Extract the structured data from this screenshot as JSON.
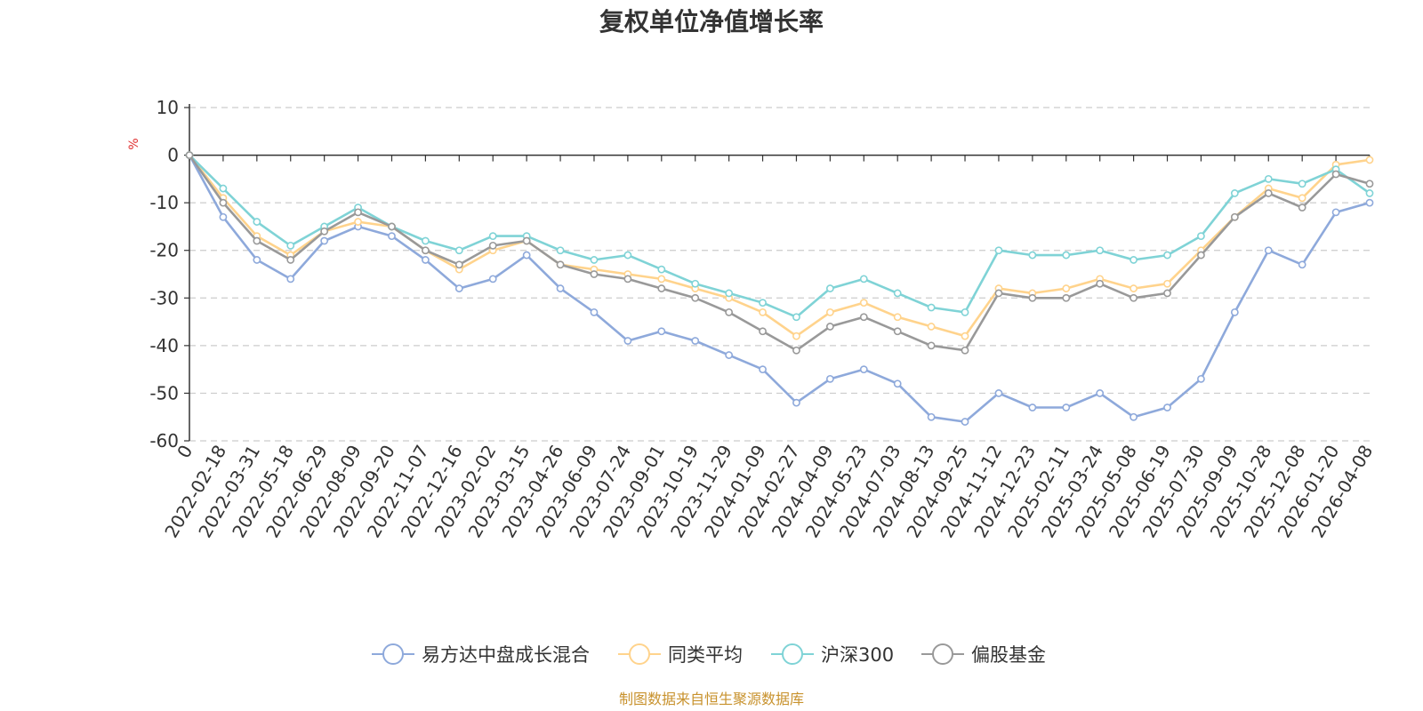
{
  "chart_data": {
    "type": "line",
    "title": "复权单位净值增长率",
    "ylabel": "%",
    "ylim": [
      -60,
      10
    ],
    "yticks": [
      10,
      0,
      -10,
      -20,
      -30,
      -40,
      -50,
      -60
    ],
    "x_tick_labels": [
      "0",
      "2022-02-18",
      "2022-03-31",
      "2022-05-18",
      "2022-06-29",
      "2022-08-09",
      "2022-09-20",
      "2022-11-07",
      "2022-12-16",
      "2023-02-02",
      "2023-03-15",
      "2023-04-26",
      "2023-06-09",
      "2023-07-24",
      "2023-09-01",
      "2023-10-19",
      "2023-11-29",
      "2024-01-09",
      "2024-02-27",
      "2024-04-09",
      "2024-05-23",
      "2024-07-03",
      "2024-08-13",
      "2024-09-25",
      "2024-11-12",
      "2024-12-23",
      "2025-02-11",
      "2025-03-24",
      "2025-05-08",
      "2025-06-19",
      "2025-07-30",
      "2025-09-09",
      "2025-10-28",
      "2025-12-08",
      "2026-01-20",
      "2026-04-08"
    ],
    "grid": true,
    "legend_position": "bottom",
    "series": [
      {
        "name": "易方达中盘成长混合",
        "color": "#8ea9db",
        "values": [
          0,
          -13,
          -22,
          -26,
          -18,
          -15,
          -17,
          -22,
          -28,
          -26,
          -21,
          -28,
          -33,
          -39,
          -37,
          -39,
          -42,
          -45,
          -52,
          -47,
          -45,
          -48,
          -55,
          -56,
          -50,
          -53,
          -53,
          -50,
          -55,
          -53,
          -47,
          -33,
          -20,
          -23,
          -12,
          -10
        ]
      },
      {
        "name": "同类平均",
        "color": "#ffd38c",
        "values": [
          0,
          -9,
          -17,
          -21,
          -16,
          -14,
          -15,
          -20,
          -24,
          -20,
          -18,
          -23,
          -24,
          -25,
          -26,
          -28,
          -30,
          -33,
          -38,
          -33,
          -31,
          -34,
          -36,
          -38,
          -28,
          -29,
          -28,
          -26,
          -28,
          -27,
          -20,
          -13,
          -7,
          -9,
          -2,
          -1
        ]
      },
      {
        "name": "沪深300",
        "color": "#7fd3d6",
        "values": [
          0,
          -7,
          -14,
          -19,
          -15,
          -11,
          -15,
          -18,
          -20,
          -17,
          -17,
          -20,
          -22,
          -21,
          -24,
          -27,
          -29,
          -31,
          -34,
          -28,
          -26,
          -29,
          -32,
          -33,
          -20,
          -21,
          -21,
          -20,
          -22,
          -21,
          -17,
          -8,
          -5,
          -6,
          -3,
          -8
        ]
      },
      {
        "name": "偏股基金",
        "color": "#999999",
        "values": [
          0,
          -10,
          -18,
          -22,
          -16,
          -12,
          -15,
          -20,
          -23,
          -19,
          -18,
          -23,
          -25,
          -26,
          -28,
          -30,
          -33,
          -37,
          -41,
          -36,
          -34,
          -37,
          -40,
          -41,
          -29,
          -30,
          -30,
          -27,
          -30,
          -29,
          -21,
          -13,
          -8,
          -11,
          -4,
          -6
        ]
      }
    ]
  },
  "source_text": "制图数据来自恒生聚源数据库",
  "colors": {
    "source": "#c8922d",
    "unit": "#e03030",
    "axis": "#333333",
    "grid": "#cccccc"
  }
}
